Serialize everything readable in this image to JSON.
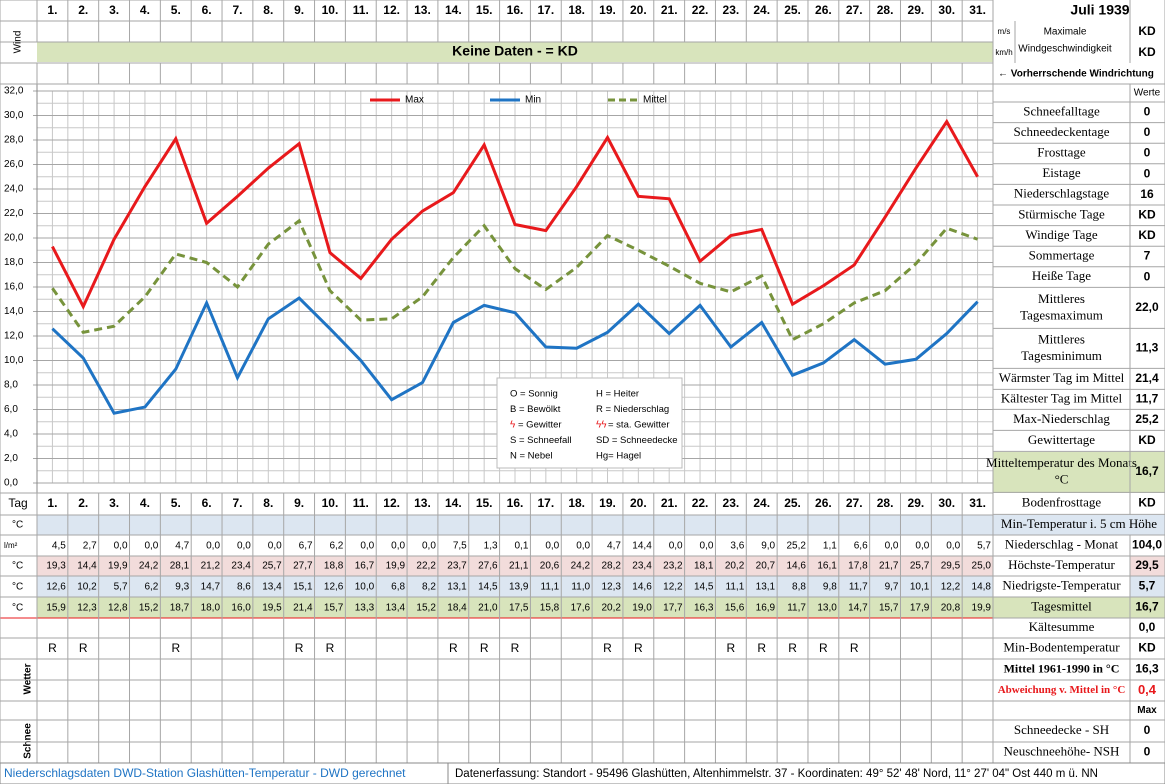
{
  "header": {
    "month": "Juli 1939"
  },
  "wind": {
    "label": "Wind",
    "unit_ms": "m/s",
    "unit_kmh": "km/h",
    "title_1": "Maximale",
    "title_2": "Windgeschwindigkeit",
    "value_ms": "KD",
    "value_kmh": "KD",
    "no_data": "Keine Daten -  = KD",
    "direction": "← Vorherrschende Windrichtung"
  },
  "chart_data": {
    "type": "line",
    "categories": [
      "1.",
      "2.",
      "3.",
      "4.",
      "5.",
      "6.",
      "7.",
      "8.",
      "9.",
      "10.",
      "11.",
      "12.",
      "13.",
      "14.",
      "15.",
      "16.",
      "17.",
      "18.",
      "19.",
      "20.",
      "21.",
      "22.",
      "23.",
      "24.",
      "25.",
      "26.",
      "27.",
      "28.",
      "29.",
      "30.",
      "31."
    ],
    "series": [
      {
        "name": "Max",
        "color": "#e8191c",
        "line_style": "solid",
        "values": [
          19.3,
          14.4,
          19.9,
          24.2,
          28.1,
          21.2,
          23.4,
          25.7,
          27.7,
          18.8,
          16.7,
          19.9,
          22.2,
          23.7,
          27.6,
          21.1,
          20.6,
          24.2,
          28.2,
          23.4,
          23.2,
          18.1,
          20.2,
          20.7,
          14.6,
          16.1,
          17.8,
          21.7,
          25.7,
          29.5,
          25.0
        ],
        "value_labels": [
          "19,3",
          "14,4",
          "19,9",
          "24,2",
          "28,1",
          "21,2",
          "23,4",
          "25,7",
          "27,7",
          "18,8",
          "16,7",
          "19,9",
          "22,2",
          "23,7",
          "27,6",
          "21,1",
          "20,6",
          "24,2",
          "28,2",
          "23,4",
          "23,2",
          "18,1",
          "20,2",
          "20,7",
          "14,6",
          "16,1",
          "17,8",
          "21,7",
          "25,7",
          "29,5",
          "25,0"
        ]
      },
      {
        "name": "Min",
        "color": "#1f74c4",
        "line_style": "solid",
        "values": [
          12.6,
          10.2,
          5.7,
          6.2,
          9.3,
          14.7,
          8.6,
          13.4,
          15.1,
          12.6,
          10.0,
          6.8,
          8.2,
          13.1,
          14.5,
          13.9,
          11.1,
          11.0,
          12.3,
          14.6,
          12.2,
          14.5,
          11.1,
          13.1,
          8.8,
          9.8,
          11.7,
          9.7,
          10.1,
          12.2,
          14.8
        ],
        "value_labels": [
          "12,6",
          "10,2",
          "5,7",
          "6,2",
          "9,3",
          "14,7",
          "8,6",
          "13,4",
          "15,1",
          "12,6",
          "10,0",
          "6,8",
          "8,2",
          "13,1",
          "14,5",
          "13,9",
          "11,1",
          "11,0",
          "12,3",
          "14,6",
          "12,2",
          "14,5",
          "11,1",
          "13,1",
          "8,8",
          "9,8",
          "11,7",
          "9,7",
          "10,1",
          "12,2",
          "14,8"
        ]
      },
      {
        "name": "Mittel",
        "color": "#77933c",
        "line_style": "dashed",
        "values": [
          15.9,
          12.3,
          12.8,
          15.2,
          18.7,
          18.0,
          16.0,
          19.5,
          21.4,
          15.7,
          13.3,
          13.4,
          15.2,
          18.4,
          21.0,
          17.5,
          15.8,
          17.6,
          20.2,
          19.0,
          17.7,
          16.3,
          15.6,
          16.9,
          11.7,
          13.0,
          14.7,
          15.7,
          17.9,
          20.8,
          19.9
        ],
        "value_labels": [
          "15,9",
          "12,3",
          "12,8",
          "15,2",
          "18,7",
          "18,0",
          "16,0",
          "19,5",
          "21,4",
          "15,7",
          "13,3",
          "13,4",
          "15,2",
          "18,4",
          "21,0",
          "17,5",
          "15,8",
          "17,6",
          "20,2",
          "19,0",
          "17,7",
          "16,3",
          "15,6",
          "16,9",
          "11,7",
          "13,0",
          "14,7",
          "15,7",
          "17,9",
          "20,8",
          "19,9"
        ]
      }
    ],
    "ylim": [
      0,
      32
    ],
    "yticks": [
      {
        "value": 0,
        "label": "0,0"
      },
      {
        "value": 2,
        "label": "2,0"
      },
      {
        "value": 4,
        "label": "4,0"
      },
      {
        "value": 6,
        "label": "6,0"
      },
      {
        "value": 8,
        "label": "8,0"
      },
      {
        "value": 10,
        "label": "10,0"
      },
      {
        "value": 12,
        "label": "12,0"
      },
      {
        "value": 14,
        "label": "14,0"
      },
      {
        "value": 16,
        "label": "16,0"
      },
      {
        "value": 18,
        "label": "18,0"
      },
      {
        "value": 20,
        "label": "20,0"
      },
      {
        "value": 22,
        "label": "22,0"
      },
      {
        "value": 24,
        "label": "24,0"
      },
      {
        "value": 26,
        "label": "26,0"
      },
      {
        "value": 28,
        "label": "28,0"
      },
      {
        "value": 30,
        "label": "30,0"
      },
      {
        "value": 32,
        "label": "32,0"
      }
    ],
    "grid": true
  },
  "weather_legend": [
    "O = Sonnig",
    "H = Heiter",
    "B = Bewölkt",
    "R = Niederschlag",
    "= Gewitter",
    "= sta. Gewitter",
    "S = Schneefall",
    "SD = Schneedecke",
    "N = Nebel",
    "Hg=  Hagel"
  ],
  "stats": {
    "header": "Werte",
    "rows": [
      [
        "Schneefalltage",
        "0"
      ],
      [
        "Schneedeckentage",
        "0"
      ],
      [
        "Frosttage",
        "0"
      ],
      [
        "Eistage",
        "0"
      ],
      [
        "Niederschlagstage",
        "16"
      ],
      [
        "Stürmische Tage",
        "KD"
      ],
      [
        "Windige Tage",
        "KD"
      ],
      [
        "Sommertage",
        "7"
      ],
      [
        "Heiße Tage",
        "0"
      ],
      [
        "Mittleres Tagesmaximum",
        "22,0"
      ],
      [
        "Mittleres Tagesminimum",
        "11,3"
      ],
      [
        "Wärmster Tag im Mittel",
        "21,4"
      ],
      [
        "Kältester Tag im Mittel",
        "11,7"
      ],
      [
        "Max-Niederschlag",
        "25,2"
      ],
      [
        "Gewittertage",
        "KD"
      ],
      [
        "Mitteltemperatur des Monats °C",
        "16,7"
      ],
      [
        "Bodenfrosttage",
        "KD"
      ]
    ]
  },
  "table": {
    "day_label": "Tag",
    "unit_c": "°C",
    "unit_p": "l/m²",
    "precipitation": [
      "4,5",
      "2,7",
      "0,0",
      "0,0",
      "4,7",
      "0,0",
      "0,0",
      "0,0",
      "6,7",
      "6,2",
      "0,0",
      "0,0",
      "0,0",
      "7,5",
      "1,3",
      "0,1",
      "0,0",
      "0,0",
      "4,7",
      "14,4",
      "0,0",
      "0,0",
      "3,6",
      "9,0",
      "25,2",
      "1,1",
      "6,6",
      "0,0",
      "0,0",
      "0,0",
      "5,7"
    ],
    "weather": [
      "R",
      "R",
      null,
      null,
      "R",
      null,
      null,
      null,
      "R",
      "R",
      null,
      null,
      null,
      "R",
      "R",
      "R",
      null,
      null,
      "R",
      "R",
      null,
      null,
      "R",
      "R",
      "R",
      "R",
      "R",
      null,
      null,
      null,
      null
    ],
    "wetter_label": "Wetter",
    "schnee_label": "Schnee",
    "summary": [
      [
        "Min-Temperatur i. 5 cm Höhe",
        null
      ],
      [
        "Niederschlag - Monat",
        "104,0"
      ],
      [
        "Höchste-Temperatur",
        "29,5"
      ],
      [
        "Niedrigste-Temperatur",
        "5,7"
      ],
      [
        "Tagesmittel",
        "16,7"
      ],
      [
        "Kältesumme",
        "0,0"
      ],
      [
        "Min-Bodentemperatur",
        "KD"
      ],
      [
        "Mittel 1961-1990 in °C",
        "16,3"
      ],
      [
        "Abweichung v. Mittel in °C",
        "0,4"
      ],
      [
        null,
        "Max"
      ],
      [
        "Schneedecke -  SH",
        "0"
      ],
      [
        "Neuschneehöhe- NSH",
        "0"
      ]
    ]
  },
  "footer": {
    "left": "Niederschlagsdaten DWD-Station Glashütten-Temperatur -  DWD gerechnet",
    "right": "Datenerfassung: Standort -  95496  Glashütten, Altenhimmelstr. 37 - Koordinaten:  49° 52' 48' Nord,  11° 27' 04\" Ost  440 m ü. NN"
  }
}
